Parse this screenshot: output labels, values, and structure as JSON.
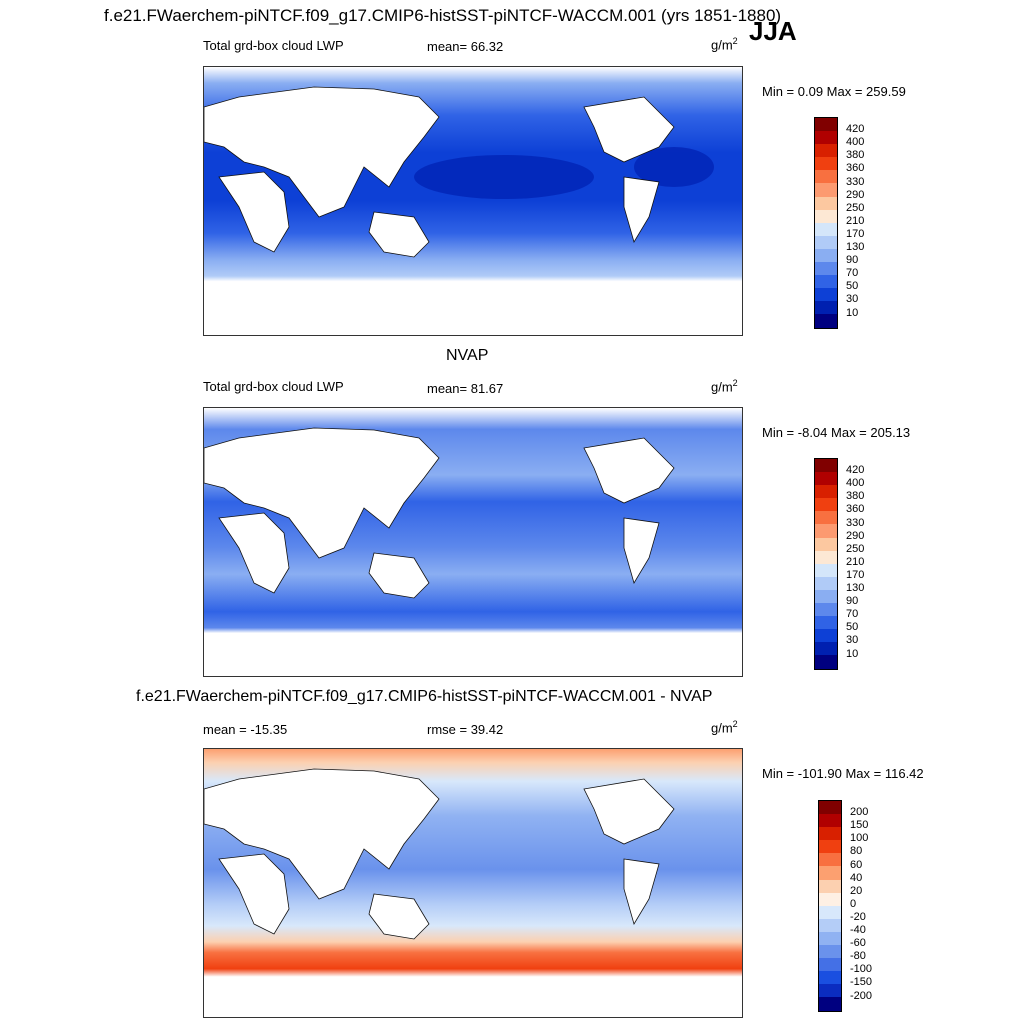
{
  "header": {
    "title": "f.e21.FWaerchem-piNTCF.f09_g17.CMIP6-histSST-piNTCF-WACCM.001 (yrs 1851-1880)",
    "season": "JJA"
  },
  "panels": [
    {
      "title": "",
      "left_label": "Total grd-box cloud LWP",
      "stat_label": "mean=  66.32",
      "units_base": "g/m",
      "units_exp": "2",
      "minmax": "Min =   0.09 Max = 259.59",
      "colorbar": {
        "colors": [
          "#800000",
          "#b00000",
          "#d82000",
          "#f04010",
          "#f87040",
          "#fc9a70",
          "#fcc8a0",
          "#fde8d4",
          "#d4e6fa",
          "#b0cbf7",
          "#8aaef2",
          "#5d88ec",
          "#3063e6",
          "#0d40d6",
          "#0020b0",
          "#000080"
        ],
        "labels": [
          "420",
          "400",
          "380",
          "360",
          "330",
          "290",
          "250",
          "210",
          "170",
          "130",
          "90",
          "70",
          "50",
          "30",
          "10"
        ]
      }
    },
    {
      "title": "NVAP",
      "left_label": "Total grd-box cloud LWP",
      "stat_label": "mean=  81.67",
      "units_base": "g/m",
      "units_exp": "2",
      "minmax": "Min =  -8.04 Max = 205.13",
      "colorbar": {
        "colors": [
          "#800000",
          "#b00000",
          "#d82000",
          "#f04010",
          "#f87040",
          "#fc9a70",
          "#fcc8a0",
          "#fde8d4",
          "#d4e6fa",
          "#b0cbf7",
          "#8aaef2",
          "#5d88ec",
          "#3063e6",
          "#0d40d6",
          "#0020b0",
          "#000080"
        ],
        "labels": [
          "420",
          "400",
          "380",
          "360",
          "330",
          "290",
          "250",
          "210",
          "170",
          "130",
          "90",
          "70",
          "50",
          "30",
          "10"
        ]
      }
    },
    {
      "title": "f.e21.FWaerchem-piNTCF.f09_g17.CMIP6-histSST-piNTCF-WACCM.001 - NVAP",
      "left_label": "mean = -15.35",
      "stat_label": "rmse =  39.42",
      "units_base": "g/m",
      "units_exp": "2",
      "minmax": "Min = -101.90 Max = 116.42",
      "colorbar": {
        "colors": [
          "#800000",
          "#b00000",
          "#d82000",
          "#f04010",
          "#f87040",
          "#fca070",
          "#fcd0b0",
          "#fef0e4",
          "#d8e8fb",
          "#b4cdf7",
          "#90b2f2",
          "#6a92ec",
          "#4470e6",
          "#1a4fe0",
          "#0b2cc0",
          "#000080"
        ],
        "labels": [
          "200",
          "150",
          "100",
          "80",
          "60",
          "40",
          "20",
          "0",
          "-20",
          "-40",
          "-60",
          "-80",
          "-100",
          "-150",
          "-200"
        ]
      }
    }
  ]
}
